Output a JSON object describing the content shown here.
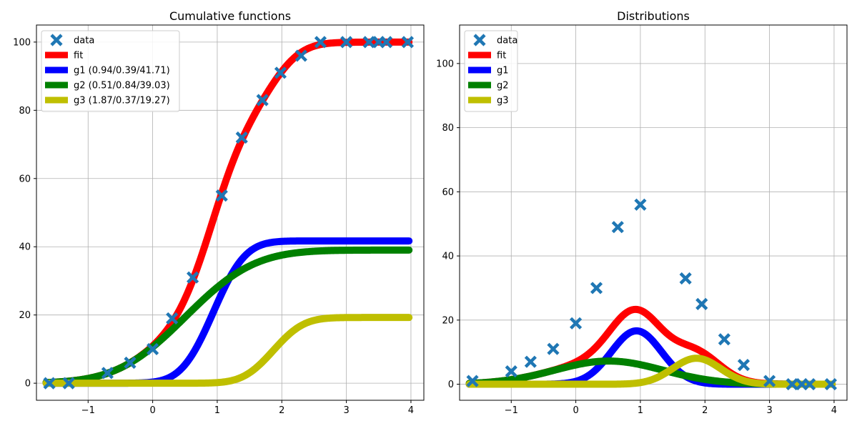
{
  "chart_data": [
    {
      "type": "line",
      "title": "Cumulative functions",
      "xlabel": "",
      "ylabel": "",
      "xlim": [
        -1.8,
        4.2
      ],
      "ylim": [
        -5,
        105
      ],
      "xticks": [
        -1,
        0,
        1,
        2,
        3,
        4
      ],
      "yticks": [
        0,
        20,
        40,
        60,
        80,
        100
      ],
      "xtick_labels": [
        "−1",
        "0",
        "1",
        "2",
        "3",
        "4"
      ],
      "ytick_labels": [
        "0",
        "20",
        "40",
        "60",
        "80",
        "100"
      ],
      "grid": true,
      "legend_position": "top-left",
      "components": [
        {
          "mu": 0.94,
          "sigma": 0.39,
          "weight": 41.71
        },
        {
          "mu": 0.51,
          "sigma": 0.84,
          "weight": 39.03
        },
        {
          "mu": 1.87,
          "sigma": 0.37,
          "weight": 19.27
        }
      ],
      "x_range": [
        -1.65,
        3.97
      ],
      "series": [
        {
          "name": "data",
          "kind": "markers",
          "color": "#1f77b4",
          "x": [
            -1.6,
            -1.3,
            -0.7,
            -0.35,
            0.0,
            0.3,
            0.62,
            1.07,
            1.38,
            1.7,
            1.98,
            2.3,
            2.6,
            3.0,
            3.35,
            3.5,
            3.62,
            3.95
          ],
          "y": [
            0,
            0,
            3,
            6,
            10,
            19,
            31,
            55,
            72,
            83,
            91,
            96,
            100,
            100,
            100,
            100,
            100,
            100
          ]
        },
        {
          "name": "fit",
          "kind": "curve",
          "color": "#ff0000",
          "component": "all"
        },
        {
          "name": "g1 (0.94/0.39/41.71)",
          "kind": "curve",
          "color": "#0000ff",
          "component": 0
        },
        {
          "name": "g2 (0.51/0.84/39.03)",
          "kind": "curve",
          "color": "#008000",
          "component": 1
        },
        {
          "name": "g3 (1.87/0.37/19.27)",
          "kind": "curve",
          "color": "#bfbf00",
          "component": 2
        }
      ]
    },
    {
      "type": "line",
      "title": "Distributions",
      "xlabel": "",
      "ylabel": "",
      "xlim": [
        -1.8,
        4.2
      ],
      "ylim": [
        -5,
        112
      ],
      "xticks": [
        -1,
        0,
        1,
        2,
        3,
        4
      ],
      "yticks": [
        0,
        20,
        40,
        60,
        80,
        100
      ],
      "xtick_labels": [
        "−1",
        "0",
        "1",
        "2",
        "3",
        "4"
      ],
      "ytick_labels": [
        "0",
        "20",
        "40",
        "60",
        "80",
        "100"
      ],
      "grid": true,
      "legend_position": "top-left",
      "components": [
        {
          "mu": 0.94,
          "sigma": 0.39,
          "weight": 41.71
        },
        {
          "mu": 0.51,
          "sigma": 0.84,
          "weight": 39.03
        },
        {
          "mu": 1.87,
          "sigma": 0.37,
          "weight": 19.27
        }
      ],
      "x_range": [
        -1.65,
        3.97
      ],
      "series": [
        {
          "name": "data",
          "kind": "markers",
          "color": "#1f77b4",
          "x": [
            -1.6,
            -1.0,
            -0.7,
            -0.35,
            0.0,
            0.32,
            0.65,
            1.0,
            1.7,
            1.95,
            2.3,
            2.6,
            3.0,
            3.35,
            3.5,
            3.62,
            3.95
          ],
          "y": [
            1,
            4,
            7,
            11,
            19,
            30,
            49,
            56,
            33,
            25,
            14,
            6,
            1,
            0,
            0,
            0,
            0
          ]
        },
        {
          "name": "fit",
          "kind": "curve",
          "color": "#ff0000",
          "component": "all"
        },
        {
          "name": "g1",
          "kind": "curve",
          "color": "#0000ff",
          "component": 0
        },
        {
          "name": "g2",
          "kind": "curve",
          "color": "#008000",
          "component": 1
        },
        {
          "name": "g3",
          "kind": "curve",
          "color": "#bfbf00",
          "component": 2
        }
      ]
    }
  ]
}
